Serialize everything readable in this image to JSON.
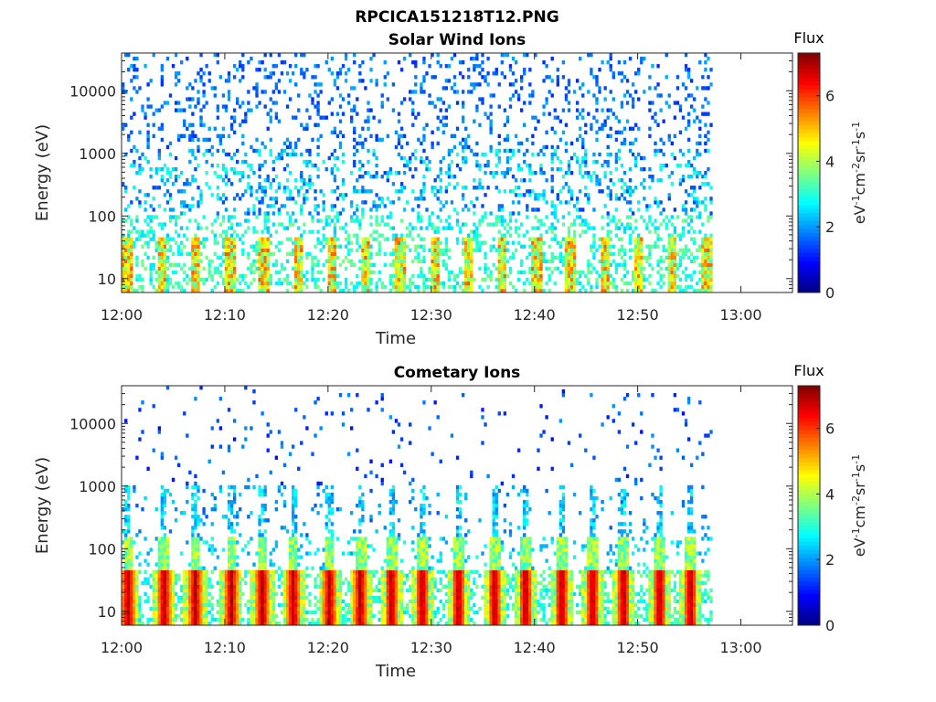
{
  "figure": {
    "title": "RPCICA151218T12.PNG"
  },
  "chart_data": [
    {
      "type": "heatmap",
      "title": "Solar Wind Ions",
      "xlabel": "Time",
      "ylabel": "Energy (eV)",
      "xlim": [
        "12:00",
        "13:05"
      ],
      "data_time_range": [
        "12:00",
        "12:57"
      ],
      "x_ticks": [
        "12:00",
        "12:10",
        "12:20",
        "12:30",
        "12:40",
        "12:50",
        "13:00"
      ],
      "y_scale": "log",
      "ylim": [
        6,
        40000
      ],
      "y_ticks": [
        "10",
        "100",
        "1000",
        "10000"
      ],
      "colorbar": {
        "label": "Flux",
        "unit": "eV-1cm-2sr-1s-1",
        "ticks": [
          "0",
          "2",
          "4",
          "6"
        ],
        "range": [
          0,
          7.3
        ],
        "colormap": "jet"
      },
      "pattern": {
        "mode": "solar",
        "description_values": {
          "high_energy_flux": 1.5,
          "low_energy_flux": 4.5
        }
      }
    },
    {
      "type": "heatmap",
      "title": "Cometary Ions",
      "xlabel": "Time",
      "ylabel": "Energy (eV)",
      "xlim": [
        "12:00",
        "13:05"
      ],
      "data_time_range": [
        "12:00",
        "12:57"
      ],
      "x_ticks": [
        "12:00",
        "12:10",
        "12:20",
        "12:30",
        "12:40",
        "12:50",
        "13:00"
      ],
      "y_scale": "log",
      "ylim": [
        6,
        40000
      ],
      "y_ticks": [
        "10",
        "100",
        "1000",
        "10000"
      ],
      "colorbar": {
        "label": "Flux",
        "unit": "eV-1cm-2sr-1s-1",
        "ticks": [
          "0",
          "2",
          "4",
          "6"
        ],
        "range": [
          0,
          7.3
        ],
        "colormap": "jet"
      },
      "pattern": {
        "mode": "comet",
        "burst_times_min": [
          0.5,
          4,
          7,
          10.5,
          13.5,
          16.5,
          20,
          23,
          26,
          29,
          32.5,
          36,
          39,
          42.5,
          45.5,
          48.5,
          52,
          55
        ],
        "burst_peak_flux": 6.8
      }
    }
  ]
}
